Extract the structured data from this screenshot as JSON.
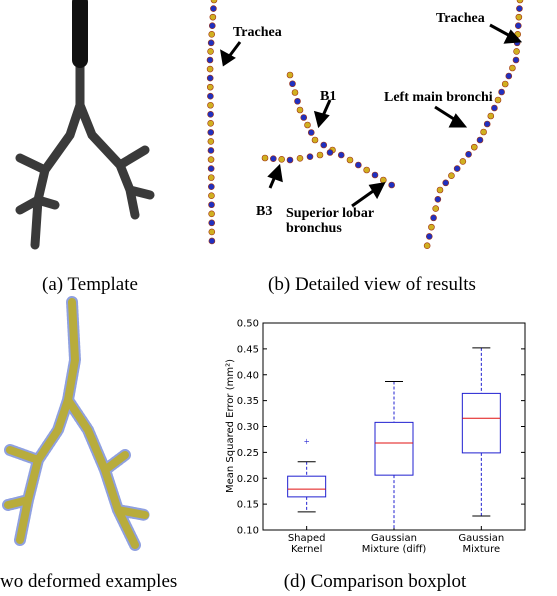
{
  "panels": {
    "a": {
      "caption": "(a) Template"
    },
    "b": {
      "caption": "(b) Detailed view of results",
      "annotations": [
        "Trachea",
        "B1",
        "B3",
        "Superior lobar\nbronchus",
        "Trachea",
        "Left main bronchi"
      ]
    },
    "c": {
      "caption": "wo deformed examples"
    },
    "d": {
      "caption": "(d) Comparison boxplot"
    }
  },
  "chart_data": {
    "type": "box",
    "y_label": "Mean Squared Error (mm²)",
    "categories": [
      "Shaped\nKernel",
      "Gaussian\nMixture (diff)",
      "Gaussian\nMixture"
    ],
    "series": [
      {
        "whislo": 0.135,
        "q1": 0.164,
        "med": 0.179,
        "q3": 0.204,
        "whishi": 0.232,
        "fliers": [
          0.27
        ]
      },
      {
        "whislo": 0.1,
        "q1": 0.206,
        "med": 0.268,
        "q3": 0.308,
        "whishi": 0.387,
        "fliers": []
      },
      {
        "whislo": 0.127,
        "q1": 0.249,
        "med": 0.316,
        "q3": 0.364,
        "whishi": 0.452,
        "fliers": []
      }
    ],
    "box_color": "#1f1fd0",
    "median_color": "#e01010",
    "ylim": [
      0.1,
      0.5
    ],
    "yticks": [
      {
        "value": 0.1,
        "label": "0.10"
      },
      {
        "value": 0.15,
        "label": "0.15"
      },
      {
        "value": 0.2,
        "label": "0.20"
      },
      {
        "value": 0.25,
        "label": "0.25"
      },
      {
        "value": 0.3,
        "label": "0.30"
      },
      {
        "value": 0.35,
        "label": "0.35"
      },
      {
        "value": 0.4,
        "label": "0.40"
      },
      {
        "value": 0.45,
        "label": "0.45"
      },
      {
        "value": 0.5,
        "label": "0.50"
      }
    ]
  }
}
